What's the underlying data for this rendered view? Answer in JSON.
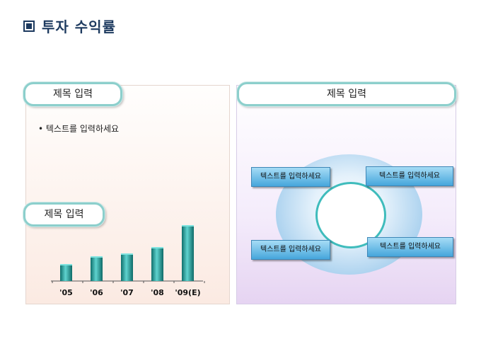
{
  "page": {
    "title": "투자 수익률"
  },
  "left_panel": {
    "top_pill": "제목 입력",
    "bullet": "• 텍스트를 입력하세요",
    "chart_pill": "제목 입력"
  },
  "right_panel": {
    "pill": "제목 입력",
    "boxes": [
      "텍스트를 입력하세요",
      "텍스트를 입력하세요",
      "텍스트를 입력하세요",
      "텍스트를 입력하세요"
    ]
  },
  "colors": {
    "title": "#1d3a5f",
    "bar": "#1f9e9a",
    "pill_border": "#8ccfcc",
    "box": "#46a6dc"
  },
  "chart_data": {
    "type": "bar",
    "categories": [
      "'05",
      "'06",
      "'07",
      "'08",
      "'09(E)"
    ],
    "values": [
      24,
      35,
      39,
      48,
      79
    ],
    "ylim": [
      0,
      90
    ]
  }
}
